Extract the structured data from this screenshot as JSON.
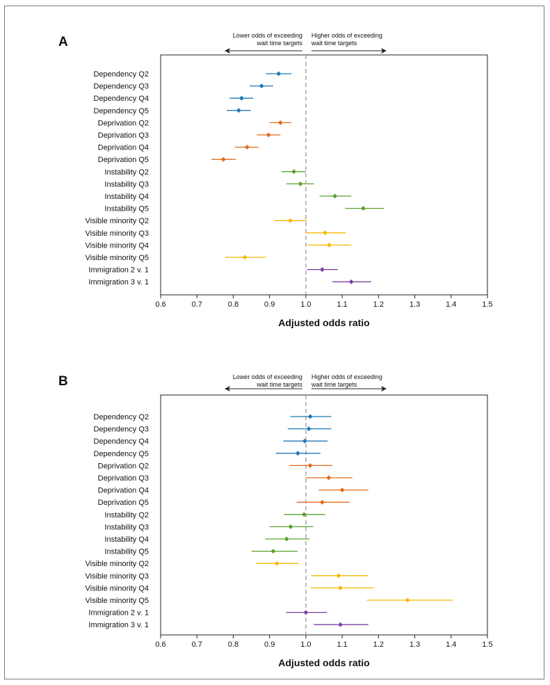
{
  "page": {
    "panel_a_letter": "A",
    "panel_b_letter": "B"
  },
  "chart_data": [
    {
      "type": "forest",
      "panel": "A",
      "xlabel": "Adjusted odds ratio",
      "xlim": [
        0.6,
        1.5
      ],
      "xticks": [
        "0.6",
        "0.7",
        "0.8",
        "0.9",
        "1.0",
        "1.1",
        "1.2",
        "1.3",
        "1.4",
        "1.5"
      ],
      "reference_line": 1.0,
      "annotation_left": [
        "Lower odds of exceeding",
        "wait time targets"
      ],
      "annotation_right": [
        "Higher odds of exceeding",
        "wait time targets"
      ],
      "series": [
        {
          "name": "Dependency",
          "color": "#1f77b4"
        },
        {
          "name": "Deprivation",
          "color": "#e06a1b"
        },
        {
          "name": "Instability",
          "color": "#5aa02c"
        },
        {
          "name": "Visible minority",
          "color": "#f5b800"
        },
        {
          "name": "Immigration",
          "color": "#7b3fa0"
        }
      ],
      "rows": [
        {
          "label": "Dependency Q2",
          "series": 0,
          "or": 0.925,
          "lo": 0.89,
          "hi": 0.96
        },
        {
          "label": "Dependency Q3",
          "series": 0,
          "or": 0.878,
          "lo": 0.845,
          "hi": 0.91
        },
        {
          "label": "Dependency Q4",
          "series": 0,
          "or": 0.823,
          "lo": 0.79,
          "hi": 0.855
        },
        {
          "label": "Dependency Q5",
          "series": 0,
          "or": 0.815,
          "lo": 0.782,
          "hi": 0.848
        },
        {
          "label": "Deprivation Q2",
          "series": 1,
          "or": 0.93,
          "lo": 0.9,
          "hi": 0.96
        },
        {
          "label": "Deprivation Q3",
          "series": 1,
          "or": 0.897,
          "lo": 0.865,
          "hi": 0.93
        },
        {
          "label": "Deprivation Q4",
          "series": 1,
          "or": 0.838,
          "lo": 0.805,
          "hi": 0.87
        },
        {
          "label": "Deprivation Q5",
          "series": 1,
          "or": 0.773,
          "lo": 0.74,
          "hi": 0.807
        },
        {
          "label": "Instability Q2",
          "series": 2,
          "or": 0.967,
          "lo": 0.933,
          "hi": 1.0
        },
        {
          "label": "Instability Q3",
          "series": 2,
          "or": 0.985,
          "lo": 0.946,
          "hi": 1.022
        },
        {
          "label": "Instability Q4",
          "series": 2,
          "or": 1.08,
          "lo": 1.038,
          "hi": 1.125
        },
        {
          "label": "Instability Q5",
          "series": 2,
          "or": 1.158,
          "lo": 1.108,
          "hi": 1.215
        },
        {
          "label": "Visible minority Q2",
          "series": 3,
          "or": 0.957,
          "lo": 0.912,
          "hi": 1.003
        },
        {
          "label": "Visible minority Q3",
          "series": 3,
          "or": 1.053,
          "lo": 1.0,
          "hi": 1.11
        },
        {
          "label": "Visible minority Q4",
          "series": 3,
          "or": 1.064,
          "lo": 1.005,
          "hi": 1.125
        },
        {
          "label": "Visible minority Q5",
          "series": 3,
          "or": 0.832,
          "lo": 0.778,
          "hi": 0.89
        },
        {
          "label": "Immigration 2 v. 1",
          "series": 4,
          "or": 1.045,
          "lo": 1.003,
          "hi": 1.088
        },
        {
          "label": "Immigration 3 v. 1",
          "series": 4,
          "or": 1.125,
          "lo": 1.073,
          "hi": 1.18
        }
      ]
    },
    {
      "type": "forest",
      "panel": "B",
      "xlabel": "Adjusted odds ratio",
      "xlim": [
        0.6,
        1.5
      ],
      "xticks": [
        "0.6",
        "0.7",
        "0.8",
        "0.9",
        "1.0",
        "1.1",
        "1.2",
        "1.3",
        "1.4",
        "1.5"
      ],
      "reference_line": 1.0,
      "annotation_left": [
        "Lower odds of exceeding",
        "wait time targets"
      ],
      "annotation_right": [
        "Higher odds of exceeding",
        "wait time targets"
      ],
      "series": [
        {
          "name": "Dependency",
          "color": "#1f77b4"
        },
        {
          "name": "Deprivation",
          "color": "#e06a1b"
        },
        {
          "name": "Instability",
          "color": "#5aa02c"
        },
        {
          "name": "Visible minority",
          "color": "#f5b800"
        },
        {
          "name": "Immigration",
          "color": "#7b3fa0"
        }
      ],
      "rows": [
        {
          "label": "Dependency Q2",
          "series": 0,
          "or": 1.012,
          "lo": 0.957,
          "hi": 1.07
        },
        {
          "label": "Dependency Q3",
          "series": 0,
          "or": 1.008,
          "lo": 0.95,
          "hi": 1.07
        },
        {
          "label": "Dependency Q4",
          "series": 0,
          "or": 0.997,
          "lo": 0.938,
          "hi": 1.06
        },
        {
          "label": "Dependency Q5",
          "series": 0,
          "or": 0.978,
          "lo": 0.917,
          "hi": 1.04
        },
        {
          "label": "Deprivation Q2",
          "series": 1,
          "or": 1.012,
          "lo": 0.955,
          "hi": 1.073
        },
        {
          "label": "Deprivation Q3",
          "series": 1,
          "or": 1.063,
          "lo": 1.0,
          "hi": 1.128
        },
        {
          "label": "Deprivation Q4",
          "series": 1,
          "or": 1.1,
          "lo": 1.035,
          "hi": 1.172
        },
        {
          "label": "Deprivation Q5",
          "series": 1,
          "or": 1.045,
          "lo": 0.975,
          "hi": 1.12
        },
        {
          "label": "Instability Q2",
          "series": 2,
          "or": 0.995,
          "lo": 0.94,
          "hi": 1.053
        },
        {
          "label": "Instability Q3",
          "series": 2,
          "or": 0.958,
          "lo": 0.9,
          "hi": 1.02
        },
        {
          "label": "Instability Q4",
          "series": 2,
          "or": 0.947,
          "lo": 0.888,
          "hi": 1.01
        },
        {
          "label": "Instability Q5",
          "series": 2,
          "or": 0.91,
          "lo": 0.85,
          "hi": 0.977
        },
        {
          "label": "Visible minority Q2",
          "series": 3,
          "or": 0.92,
          "lo": 0.863,
          "hi": 0.98
        },
        {
          "label": "Visible minority Q3",
          "series": 3,
          "or": 1.09,
          "lo": 1.015,
          "hi": 1.172
        },
        {
          "label": "Visible minority Q4",
          "series": 3,
          "or": 1.095,
          "lo": 1.013,
          "hi": 1.187
        },
        {
          "label": "Visible minority Q5",
          "series": 3,
          "or": 1.28,
          "lo": 1.168,
          "hi": 1.405
        },
        {
          "label": "Immigration 2 v. 1",
          "series": 4,
          "or": 1.0,
          "lo": 0.945,
          "hi": 1.058
        },
        {
          "label": "Immigration 3 v. 1",
          "series": 4,
          "or": 1.095,
          "lo": 1.022,
          "hi": 1.172
        }
      ]
    }
  ]
}
